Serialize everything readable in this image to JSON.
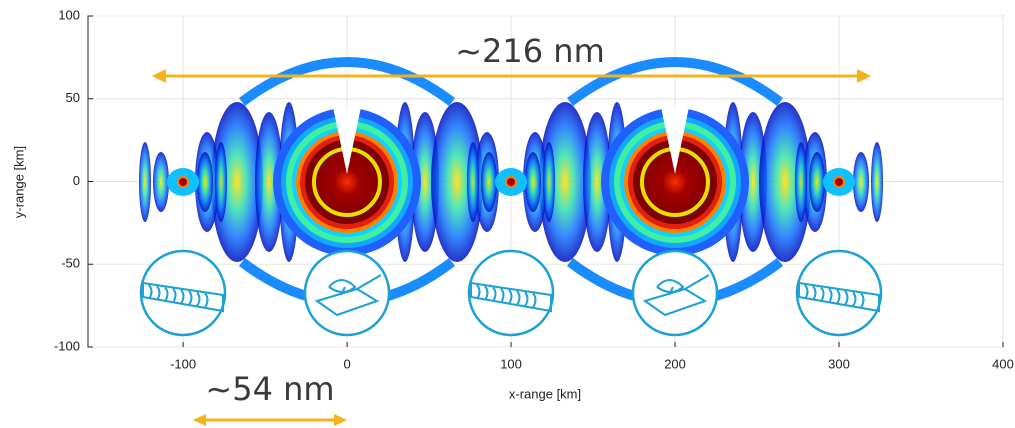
{
  "chart_data": {
    "type": "heatmap",
    "xlabel": "x-range [km]",
    "ylabel": "y-range [km]",
    "xlim": [
      -158,
      400
    ],
    "ylim": [
      -100,
      100
    ],
    "xticks": [
      -100,
      0,
      100,
      200,
      300,
      400
    ],
    "yticks": [
      -100,
      -50,
      0,
      50,
      100
    ],
    "grid": true,
    "annotations": [
      "~216 nm",
      "~54 nm"
    ]
  }
}
